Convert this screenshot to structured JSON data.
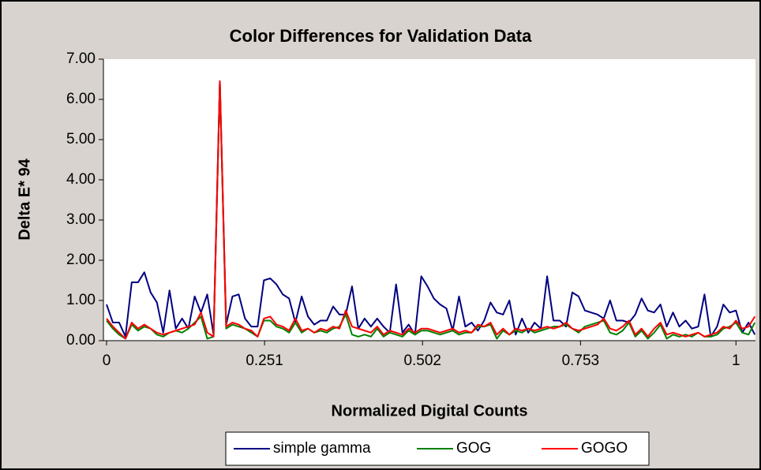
{
  "chart_data": {
    "type": "line",
    "title": "Color Differences for Validation Data",
    "xlabel": "Normalized Digital Counts",
    "ylabel": "Delta E* 94",
    "x": [
      0,
      0.01,
      0.02,
      0.03,
      0.04,
      0.05,
      0.06,
      0.07,
      0.08,
      0.09,
      0.1,
      0.11,
      0.12,
      0.13,
      0.14,
      0.15,
      0.16,
      0.17,
      0.18,
      0.19,
      0.2,
      0.21,
      0.22,
      0.23,
      0.24,
      0.25,
      0.26,
      0.27,
      0.28,
      0.29,
      0.3,
      0.31,
      0.32,
      0.33,
      0.34,
      0.35,
      0.36,
      0.37,
      0.38,
      0.39,
      0.4,
      0.41,
      0.42,
      0.43,
      0.44,
      0.45,
      0.46,
      0.47,
      0.48,
      0.49,
      0.5,
      0.51,
      0.52,
      0.53,
      0.54,
      0.55,
      0.56,
      0.57,
      0.58,
      0.59,
      0.6,
      0.61,
      0.62,
      0.63,
      0.64,
      0.65,
      0.66,
      0.67,
      0.68,
      0.69,
      0.7,
      0.71,
      0.72,
      0.73,
      0.74,
      0.75,
      0.76,
      0.77,
      0.78,
      0.79,
      0.8,
      0.81,
      0.82,
      0.83,
      0.84,
      0.85,
      0.86,
      0.87,
      0.88,
      0.89,
      0.9,
      0.91,
      0.92,
      0.93,
      0.94,
      0.95,
      0.96,
      0.97,
      0.98,
      0.99,
      1.0,
      1.01,
      1.02,
      1.03
    ],
    "series": [
      {
        "name": "simple gamma",
        "color": "#000080",
        "values": [
          0.9,
          0.45,
          0.45,
          0.1,
          1.45,
          1.45,
          1.7,
          1.2,
          0.95,
          0.2,
          1.25,
          0.3,
          0.55,
          0.3,
          1.1,
          0.7,
          1.15,
          0.15,
          6.45,
          0.4,
          1.1,
          1.15,
          0.55,
          0.35,
          0.35,
          1.5,
          1.55,
          1.4,
          1.15,
          1.05,
          0.45,
          1.1,
          0.6,
          0.4,
          0.5,
          0.5,
          0.85,
          0.65,
          0.65,
          1.35,
          0.3,
          0.55,
          0.35,
          0.55,
          0.35,
          0.2,
          1.4,
          0.2,
          0.4,
          0.15,
          1.6,
          1.35,
          1.05,
          0.9,
          0.8,
          0.25,
          1.1,
          0.35,
          0.45,
          0.25,
          0.5,
          0.95,
          0.7,
          0.65,
          1.0,
          0.15,
          0.55,
          0.2,
          0.45,
          0.3,
          1.6,
          0.5,
          0.5,
          0.35,
          1.2,
          1.1,
          0.75,
          0.7,
          0.65,
          0.55,
          1.0,
          0.5,
          0.5,
          0.45,
          0.65,
          1.05,
          0.75,
          0.7,
          0.9,
          0.35,
          0.7,
          0.35,
          0.5,
          0.3,
          0.35,
          1.15,
          0.1,
          0.35,
          0.9,
          0.7,
          0.75,
          0.2,
          0.45,
          0.15
        ]
      },
      {
        "name": "GOG",
        "color": "#008000",
        "values": [
          0.5,
          0.3,
          0.15,
          0.05,
          0.4,
          0.25,
          0.35,
          0.3,
          0.15,
          0.1,
          0.2,
          0.25,
          0.2,
          0.3,
          0.45,
          0.6,
          0.05,
          0.1,
          6.4,
          0.3,
          0.4,
          0.35,
          0.3,
          0.2,
          0.1,
          0.5,
          0.5,
          0.35,
          0.3,
          0.2,
          0.45,
          0.2,
          0.3,
          0.2,
          0.25,
          0.2,
          0.3,
          0.35,
          0.65,
          0.15,
          0.1,
          0.15,
          0.1,
          0.3,
          0.1,
          0.2,
          0.15,
          0.1,
          0.25,
          0.15,
          0.25,
          0.25,
          0.2,
          0.15,
          0.2,
          0.25,
          0.15,
          0.2,
          0.2,
          0.35,
          0.35,
          0.4,
          0.05,
          0.25,
          0.15,
          0.25,
          0.2,
          0.3,
          0.2,
          0.25,
          0.3,
          0.35,
          0.35,
          0.4,
          0.3,
          0.2,
          0.35,
          0.4,
          0.45,
          0.5,
          0.2,
          0.15,
          0.25,
          0.45,
          0.1,
          0.25,
          0.05,
          0.2,
          0.4,
          0.05,
          0.15,
          0.1,
          0.15,
          0.1,
          0.2,
          0.1,
          0.1,
          0.15,
          0.3,
          0.35,
          0.45,
          0.2,
          0.15,
          0.45
        ]
      },
      {
        "name": "GOGO",
        "color": "#ff0000",
        "values": [
          0.55,
          0.35,
          0.2,
          0.05,
          0.45,
          0.3,
          0.4,
          0.3,
          0.2,
          0.15,
          0.2,
          0.25,
          0.3,
          0.35,
          0.4,
          0.7,
          0.2,
          0.1,
          6.45,
          0.35,
          0.45,
          0.4,
          0.3,
          0.25,
          0.1,
          0.55,
          0.6,
          0.4,
          0.35,
          0.25,
          0.55,
          0.25,
          0.3,
          0.2,
          0.3,
          0.25,
          0.35,
          0.3,
          0.75,
          0.35,
          0.3,
          0.25,
          0.2,
          0.35,
          0.15,
          0.25,
          0.2,
          0.15,
          0.3,
          0.2,
          0.3,
          0.3,
          0.25,
          0.2,
          0.25,
          0.3,
          0.2,
          0.25,
          0.2,
          0.4,
          0.35,
          0.45,
          0.15,
          0.3,
          0.15,
          0.3,
          0.25,
          0.3,
          0.25,
          0.3,
          0.35,
          0.3,
          0.35,
          0.45,
          0.3,
          0.25,
          0.3,
          0.35,
          0.4,
          0.55,
          0.3,
          0.25,
          0.35,
          0.5,
          0.15,
          0.3,
          0.1,
          0.3,
          0.45,
          0.15,
          0.2,
          0.15,
          0.1,
          0.15,
          0.2,
          0.1,
          0.15,
          0.2,
          0.35,
          0.3,
          0.5,
          0.3,
          0.35,
          0.6
        ]
      }
    ],
    "xlim": [
      -0.005,
      1.031
    ],
    "xticks": [
      0,
      0.251,
      0.502,
      0.753,
      1
    ],
    "ylim": [
      0,
      7
    ],
    "yticks": [
      {
        "value": 0,
        "label": "0.00"
      },
      {
        "value": 1,
        "label": "1.00"
      },
      {
        "value": 2,
        "label": "2.00"
      },
      {
        "value": 3,
        "label": "3.00"
      },
      {
        "value": 4,
        "label": "4.00"
      },
      {
        "value": 5,
        "label": "5.00"
      },
      {
        "value": 6,
        "label": "6.00"
      },
      {
        "value": 7,
        "label": "7.00"
      }
    ],
    "grid": false,
    "legend": "bottom"
  }
}
